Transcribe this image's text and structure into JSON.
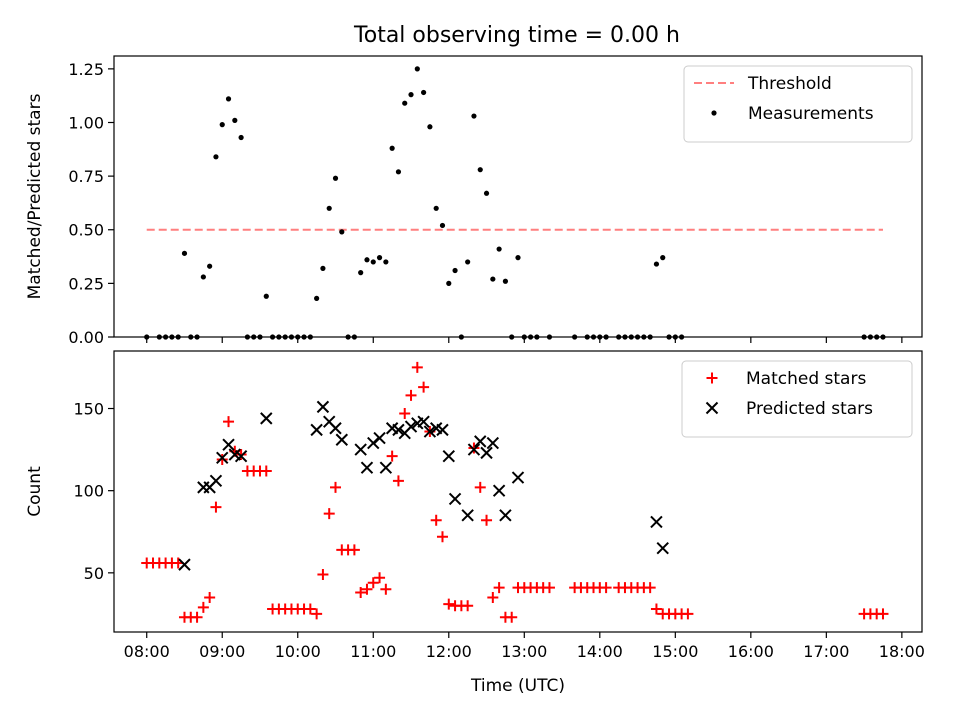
{
  "title": "Total observing time = 0.00 h",
  "chart_data": [
    {
      "type": "scatter",
      "ylabel": "Matched/Predicted stars",
      "ylim": [
        0,
        1.31
      ],
      "xlim": [
        "07:34",
        "18:16"
      ],
      "yticks": [
        0,
        0.25,
        0.5,
        0.75,
        1.0,
        1.25
      ],
      "ytick_labels": [
        "0.00",
        "0.25",
        "0.50",
        "0.75",
        "1.00",
        "1.25"
      ],
      "legend_position": "top-right",
      "threshold": {
        "name": "Threshold",
        "value": 0.5,
        "x_start": "08:00",
        "x_end": "17:45",
        "color": "#ff7f7f"
      },
      "series": [
        {
          "name": "Measurements",
          "color": "#000000",
          "marker": "dot",
          "points": [
            [
              "08:00",
              0
            ],
            [
              "08:10",
              0
            ],
            [
              "08:15",
              0
            ],
            [
              "08:20",
              0
            ],
            [
              "08:25",
              0
            ],
            [
              "08:30",
              0.39
            ],
            [
              "08:35",
              0
            ],
            [
              "08:40",
              0
            ],
            [
              "08:45",
              0.28
            ],
            [
              "08:50",
              0.33
            ],
            [
              "08:55",
              0.84
            ],
            [
              "09:00",
              0.99
            ],
            [
              "09:05",
              1.11
            ],
            [
              "09:10",
              1.01
            ],
            [
              "09:15",
              0.93
            ],
            [
              "09:20",
              0
            ],
            [
              "09:25",
              0
            ],
            [
              "09:30",
              0
            ],
            [
              "09:35",
              0.19
            ],
            [
              "09:40",
              0
            ],
            [
              "09:45",
              0
            ],
            [
              "09:50",
              0
            ],
            [
              "09:55",
              0
            ],
            [
              "10:00",
              0
            ],
            [
              "10:05",
              0
            ],
            [
              "10:10",
              0
            ],
            [
              "10:15",
              0.18
            ],
            [
              "10:20",
              0.32
            ],
            [
              "10:25",
              0.6
            ],
            [
              "10:30",
              0.74
            ],
            [
              "10:35",
              0.49
            ],
            [
              "10:40",
              0
            ],
            [
              "10:45",
              0
            ],
            [
              "10:50",
              0.3
            ],
            [
              "10:55",
              0.36
            ],
            [
              "11:00",
              0.35
            ],
            [
              "11:05",
              0.37
            ],
            [
              "11:10",
              0.35
            ],
            [
              "11:15",
              0.88
            ],
            [
              "11:20",
              0.77
            ],
            [
              "11:25",
              1.09
            ],
            [
              "11:30",
              1.13
            ],
            [
              "11:35",
              1.25
            ],
            [
              "11:40",
              1.14
            ],
            [
              "11:45",
              0.98
            ],
            [
              "11:50",
              0.6
            ],
            [
              "11:55",
              0.52
            ],
            [
              "12:00",
              0.25
            ],
            [
              "12:05",
              0.31
            ],
            [
              "12:10",
              0
            ],
            [
              "12:15",
              0.35
            ],
            [
              "12:20",
              1.03
            ],
            [
              "12:25",
              0.78
            ],
            [
              "12:30",
              0.67
            ],
            [
              "12:35",
              0.27
            ],
            [
              "12:40",
              0.41
            ],
            [
              "12:45",
              0.26
            ],
            [
              "12:50",
              0
            ],
            [
              "12:55",
              0.37
            ],
            [
              "13:00",
              0
            ],
            [
              "13:05",
              0
            ],
            [
              "13:10",
              0
            ],
            [
              "13:20",
              0
            ],
            [
              "13:40",
              0
            ],
            [
              "13:50",
              0
            ],
            [
              "13:55",
              0
            ],
            [
              "14:00",
              0
            ],
            [
              "14:05",
              0
            ],
            [
              "14:15",
              0
            ],
            [
              "14:20",
              0
            ],
            [
              "14:25",
              0
            ],
            [
              "14:30",
              0
            ],
            [
              "14:35",
              0
            ],
            [
              "14:40",
              0
            ],
            [
              "14:45",
              0.34
            ],
            [
              "14:50",
              0.37
            ],
            [
              "14:55",
              0
            ],
            [
              "15:00",
              0
            ],
            [
              "15:05",
              0
            ],
            [
              "17:30",
              0
            ],
            [
              "17:35",
              0
            ],
            [
              "17:40",
              0
            ],
            [
              "17:45",
              0
            ]
          ]
        }
      ]
    },
    {
      "type": "scatter",
      "xlabel": "Time (UTC)",
      "ylabel": "Count",
      "ylim": [
        14,
        185
      ],
      "xlim": [
        "07:34",
        "18:16"
      ],
      "yticks": [
        50,
        100,
        150
      ],
      "ytick_labels": [
        "50",
        "100",
        "150"
      ],
      "xticks": [
        "08:00",
        "09:00",
        "10:00",
        "11:00",
        "12:00",
        "13:00",
        "14:00",
        "15:00",
        "16:00",
        "17:00",
        "18:00"
      ],
      "legend_position": "top-right",
      "series": [
        {
          "name": "Matched stars",
          "color": "#ff0000",
          "marker": "plus",
          "points": [
            [
              "08:00",
              56
            ],
            [
              "08:05",
              56
            ],
            [
              "08:10",
              56
            ],
            [
              "08:15",
              56
            ],
            [
              "08:20",
              56
            ],
            [
              "08:25",
              56
            ],
            [
              "08:30",
              23
            ],
            [
              "08:35",
              23
            ],
            [
              "08:40",
              23
            ],
            [
              "08:45",
              29
            ],
            [
              "08:50",
              35
            ],
            [
              "08:55",
              90
            ],
            [
              "09:00",
              119
            ],
            [
              "09:05",
              142
            ],
            [
              "09:10",
              124
            ],
            [
              "09:15",
              122
            ],
            [
              "09:20",
              112
            ],
            [
              "09:25",
              112
            ],
            [
              "09:30",
              112
            ],
            [
              "09:35",
              112
            ],
            [
              "09:40",
              28
            ],
            [
              "09:45",
              28
            ],
            [
              "09:50",
              28
            ],
            [
              "09:55",
              28
            ],
            [
              "10:00",
              28
            ],
            [
              "10:05",
              28
            ],
            [
              "10:10",
              28
            ],
            [
              "10:15",
              25
            ],
            [
              "10:20",
              49
            ],
            [
              "10:25",
              86
            ],
            [
              "10:30",
              102
            ],
            [
              "10:35",
              64
            ],
            [
              "10:40",
              64
            ],
            [
              "10:45",
              64
            ],
            [
              "10:50",
              38
            ],
            [
              "10:55",
              40
            ],
            [
              "11:00",
              44
            ],
            [
              "11:05",
              47
            ],
            [
              "11:10",
              40
            ],
            [
              "11:15",
              121
            ],
            [
              "11:20",
              106
            ],
            [
              "11:25",
              147
            ],
            [
              "11:30",
              158
            ],
            [
              "11:35",
              175
            ],
            [
              "11:40",
              163
            ],
            [
              "11:45",
              136
            ],
            [
              "11:50",
              82
            ],
            [
              "11:55",
              72
            ],
            [
              "12:00",
              31
            ],
            [
              "12:05",
              30
            ],
            [
              "12:10",
              30
            ],
            [
              "12:15",
              30
            ],
            [
              "12:20",
              126
            ],
            [
              "12:25",
              102
            ],
            [
              "12:30",
              82
            ],
            [
              "12:35",
              35
            ],
            [
              "12:40",
              41
            ],
            [
              "12:45",
              23
            ],
            [
              "12:50",
              23
            ],
            [
              "12:55",
              41
            ],
            [
              "13:00",
              41
            ],
            [
              "13:05",
              41
            ],
            [
              "13:10",
              41
            ],
            [
              "13:15",
              41
            ],
            [
              "13:20",
              41
            ],
            [
              "13:40",
              41
            ],
            [
              "13:45",
              41
            ],
            [
              "13:50",
              41
            ],
            [
              "13:55",
              41
            ],
            [
              "14:00",
              41
            ],
            [
              "14:05",
              41
            ],
            [
              "14:15",
              41
            ],
            [
              "14:20",
              41
            ],
            [
              "14:25",
              41
            ],
            [
              "14:30",
              41
            ],
            [
              "14:35",
              41
            ],
            [
              "14:40",
              41
            ],
            [
              "14:45",
              28
            ],
            [
              "14:50",
              25
            ],
            [
              "14:55",
              25
            ],
            [
              "15:00",
              25
            ],
            [
              "15:05",
              25
            ],
            [
              "15:10",
              25
            ],
            [
              "17:30",
              25
            ],
            [
              "17:35",
              25
            ],
            [
              "17:40",
              25
            ],
            [
              "17:45",
              25
            ]
          ]
        },
        {
          "name": "Predicted stars",
          "color": "#000000",
          "marker": "x",
          "points": [
            [
              "08:30",
              55
            ],
            [
              "08:45",
              102
            ],
            [
              "08:50",
              102
            ],
            [
              "08:55",
              106
            ],
            [
              "09:00",
              120
            ],
            [
              "09:05",
              128
            ],
            [
              "09:10",
              122
            ],
            [
              "09:15",
              121
            ],
            [
              "09:35",
              144
            ],
            [
              "10:15",
              137
            ],
            [
              "10:20",
              151
            ],
            [
              "10:25",
              142
            ],
            [
              "10:30",
              138
            ],
            [
              "10:35",
              131
            ],
            [
              "10:50",
              125
            ],
            [
              "10:55",
              114
            ],
            [
              "11:00",
              129
            ],
            [
              "11:05",
              132
            ],
            [
              "11:10",
              114
            ],
            [
              "11:15",
              138
            ],
            [
              "11:20",
              137
            ],
            [
              "11:25",
              135
            ],
            [
              "11:30",
              139
            ],
            [
              "11:35",
              141
            ],
            [
              "11:40",
              142
            ],
            [
              "11:45",
              136
            ],
            [
              "11:50",
              138
            ],
            [
              "11:55",
              137
            ],
            [
              "12:00",
              121
            ],
            [
              "12:05",
              95
            ],
            [
              "12:15",
              85
            ],
            [
              "12:20",
              125
            ],
            [
              "12:25",
              130
            ],
            [
              "12:30",
              123
            ],
            [
              "12:35",
              129
            ],
            [
              "12:40",
              100
            ],
            [
              "12:45",
              85
            ],
            [
              "12:55",
              108
            ],
            [
              "14:45",
              81
            ],
            [
              "14:50",
              65
            ]
          ]
        }
      ]
    }
  ]
}
